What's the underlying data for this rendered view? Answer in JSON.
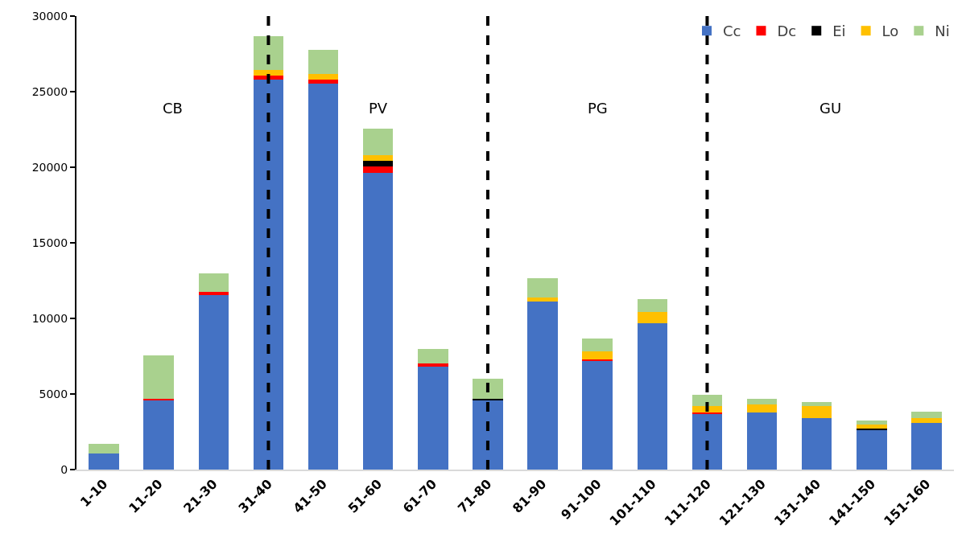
{
  "chart_data": {
    "type": "bar",
    "stacked": true,
    "categories": [
      "1-10",
      "11-20",
      "21-30",
      "31-40",
      "41-50",
      "51-60",
      "61-70",
      "71-80",
      "81-90",
      "91-100",
      "101-110",
      "111-120",
      "121-130",
      "131-140",
      "141-150",
      "151-160"
    ],
    "series": [
      {
        "name": "Cc",
        "color": "#4472c4",
        "values": [
          1050,
          4570,
          11540,
          25800,
          25530,
          19650,
          6800,
          4570,
          11100,
          7190,
          9690,
          3650,
          3760,
          3380,
          2610,
          3100
        ]
      },
      {
        "name": "Dc",
        "color": "#ff0000",
        "values": [
          null,
          110,
          220,
          280,
          270,
          380,
          220,
          null,
          null,
          100,
          null,
          110,
          null,
          null,
          null,
          null
        ]
      },
      {
        "name": "Ei",
        "color": "#000000",
        "values": [
          null,
          null,
          null,
          null,
          null,
          380,
          null,
          110,
          null,
          null,
          null,
          null,
          null,
          null,
          110,
          null
        ]
      },
      {
        "name": "Lo",
        "color": "#ffc000",
        "values": [
          null,
          null,
          null,
          380,
          380,
          380,
          null,
          null,
          280,
          550,
          760,
          430,
          540,
          810,
          270,
          280
        ]
      },
      {
        "name": "Ni",
        "color": "#a9d18e",
        "values": [
          650,
          2890,
          1200,
          2230,
          1580,
          1750,
          980,
          1310,
          1300,
          820,
          820,
          760,
          380,
          270,
          280,
          430
        ]
      }
    ],
    "ylim": [
      0,
      30000
    ],
    "yticks": [
      0,
      5000,
      10000,
      15000,
      20000,
      25000,
      30000
    ],
    "grid": false,
    "legend": "top right",
    "ref_lines": [
      {
        "axis": "x",
        "value": "31-40",
        "color": "#000000",
        "line_style": "dashed"
      },
      {
        "axis": "x",
        "value": "71-80",
        "color": "#000000",
        "line_style": "dashed"
      },
      {
        "axis": "x",
        "value": "111-120",
        "color": "#000000",
        "line_style": "dashed"
      }
    ],
    "annotations": [
      "CB",
      "PV",
      "PG",
      "GU"
    ]
  }
}
